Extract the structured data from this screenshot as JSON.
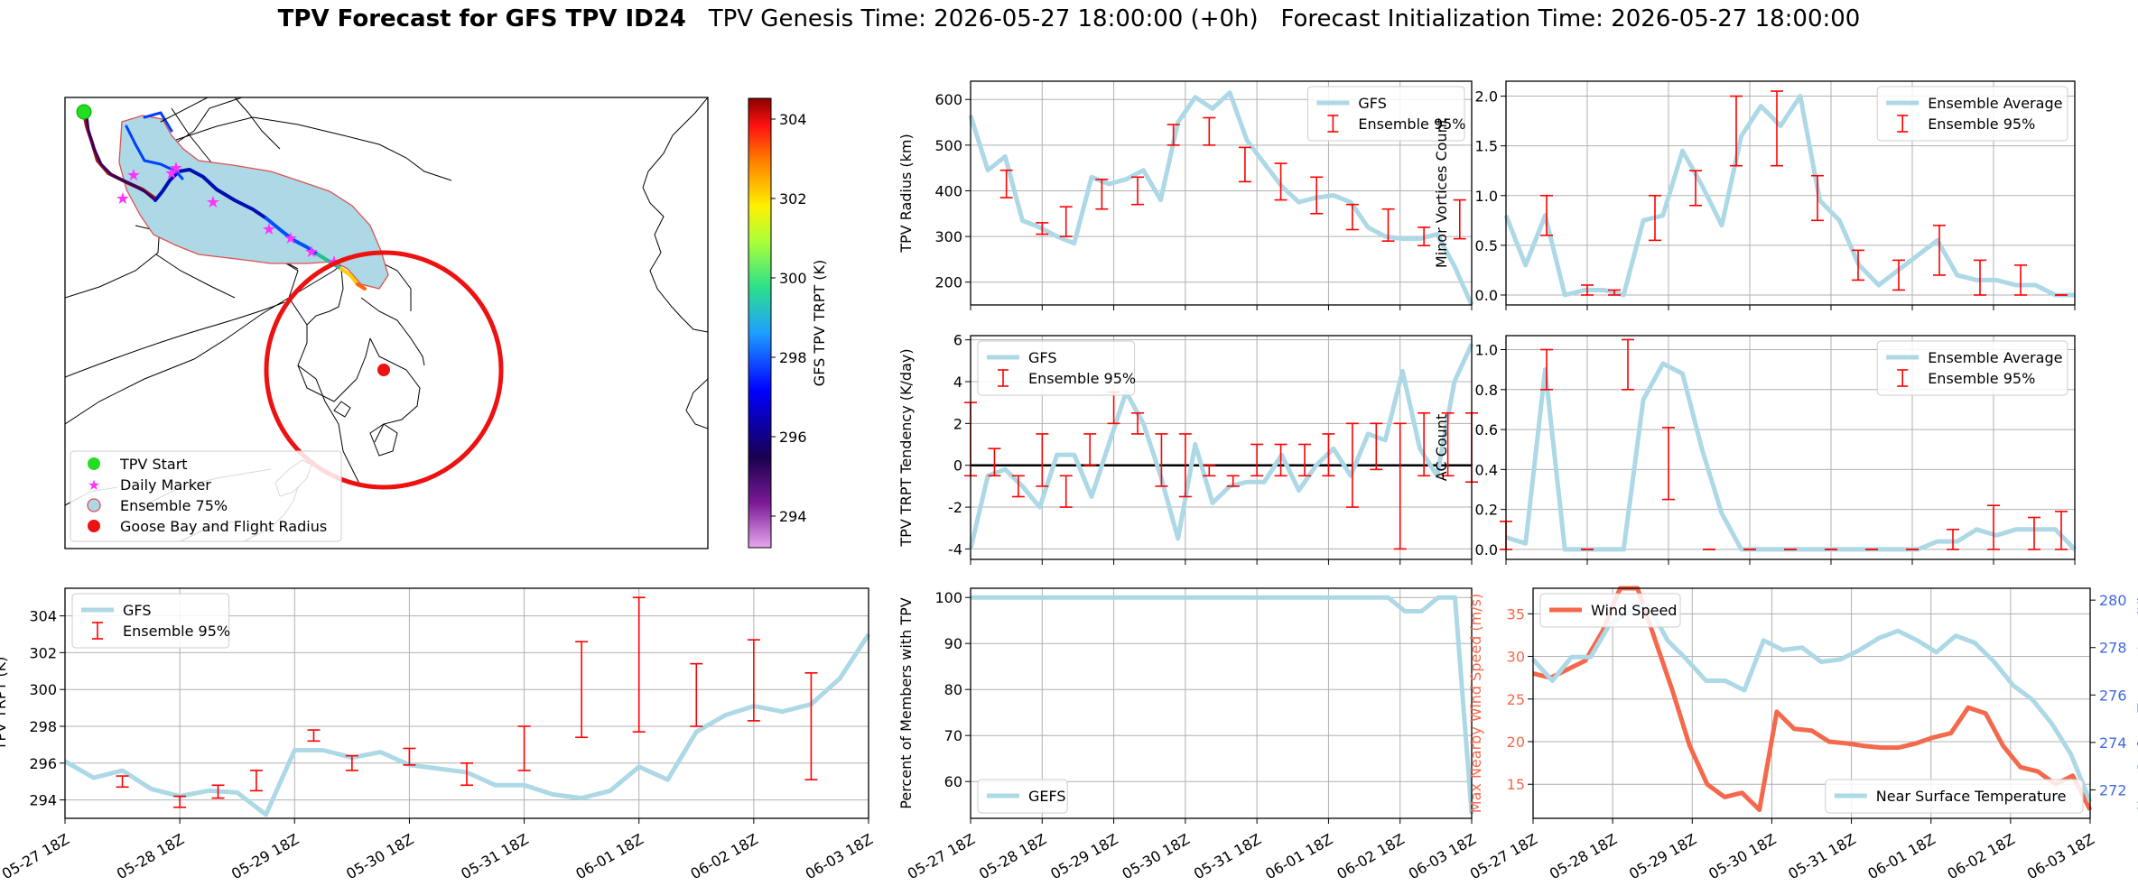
{
  "figure": {
    "title_bold": "TPV Forecast for GFS TPV ID24",
    "title_genesis": "TPV Genesis Time: 2026-05-27 18:00:00 (+0h)",
    "title_init": "Forecast Initialization Time: 2026-05-27 18:00:00"
  },
  "map_panel": {
    "colorbar_label": "GFS TPV TRPT (K)",
    "colorbar_ticks": [
      "294",
      "296",
      "298",
      "300",
      "302",
      "304"
    ],
    "legend": [
      "TPV Start",
      "Daily Marker",
      "Ensemble 75%",
      "Goose Bay and Flight Radius"
    ]
  },
  "chart_data": [
    {
      "id": "radius",
      "type": "line",
      "ylabel": "TPV Radius (km)",
      "ylim": [
        150,
        640
      ],
      "yticks": [
        200,
        300,
        400,
        500,
        600
      ],
      "xlim": [
        0,
        42
      ],
      "series": [
        {
          "name": "GFS",
          "color": "#add8e6",
          "values": [
            565,
            445,
            475,
            335,
            320,
            300,
            285,
            430,
            415,
            425,
            445,
            380,
            550,
            605,
            580,
            615,
            510,
            460,
            410,
            375,
            385,
            390,
            375,
            320,
            300,
            295,
            295,
            305,
            235,
            150
          ]
        }
      ],
      "errorbars": {
        "name": "Ensemble 95%",
        "color": "#ff0000",
        "x": [
          3,
          6,
          8,
          11,
          14,
          17,
          20,
          23,
          26,
          29,
          32,
          35,
          38,
          41
        ],
        "lo": [
          385,
          305,
          300,
          360,
          370,
          500,
          500,
          420,
          380,
          350,
          315,
          290,
          280,
          295
        ],
        "hi": [
          445,
          330,
          365,
          425,
          430,
          545,
          560,
          495,
          460,
          430,
          370,
          360,
          320,
          380
        ]
      },
      "legend_pos": "top-right",
      "show_xticklabels": false
    },
    {
      "id": "minor",
      "type": "line",
      "ylabel": "Minor Vortices Count",
      "ylim": [
        -0.1,
        2.15
      ],
      "yticks": [
        0.0,
        0.5,
        1.0,
        1.5,
        2.0
      ],
      "xlim": [
        0,
        42
      ],
      "series": [
        {
          "name": "Ensemble Average",
          "color": "#add8e6",
          "values": [
            0.8,
            0.3,
            0.8,
            0.0,
            0.05,
            0.05,
            0.0,
            0.75,
            0.8,
            1.45,
            1.1,
            0.7,
            1.6,
            1.9,
            1.7,
            2.0,
            0.95,
            0.75,
            0.3,
            0.1,
            0.25,
            0.4,
            0.55,
            0.2,
            0.15,
            0.15,
            0.1,
            0.1,
            0.0,
            0.0
          ]
        }
      ],
      "errorbars": {
        "name": "Ensemble 95%",
        "color": "#ff0000",
        "x": [
          3,
          6,
          8,
          11,
          14,
          17,
          20,
          23,
          26,
          29,
          32,
          35,
          38,
          41
        ],
        "lo": [
          0.6,
          0.0,
          0.0,
          0.55,
          0.9,
          1.3,
          1.3,
          0.75,
          0.15,
          0.05,
          0.2,
          0.0,
          0.0,
          0.0
        ],
        "hi": [
          1.0,
          0.1,
          0.05,
          1.0,
          1.25,
          2.0,
          2.05,
          1.2,
          0.45,
          0.35,
          0.7,
          0.35,
          0.3,
          0.0
        ]
      },
      "legend_pos": "top-right",
      "show_xticklabels": false
    },
    {
      "id": "tendency",
      "type": "line",
      "ylabel": "TPV TRPT Tendency (K/day)",
      "ylim": [
        -4.5,
        6.2
      ],
      "yticks": [
        -4,
        -2,
        0,
        2,
        4,
        6
      ],
      "xlim": [
        0,
        42
      ],
      "zero_line": true,
      "series": [
        {
          "name": "GFS",
          "color": "#add8e6",
          "values": [
            -4.0,
            -0.5,
            -0.2,
            -1.0,
            -2.0,
            0.5,
            0.5,
            -1.5,
            1.0,
            3.5,
            2.0,
            -0.5,
            -3.5,
            1.0,
            -1.8,
            -1.0,
            -0.8,
            -0.8,
            0.5,
            -1.2,
            0.0,
            0.8,
            -0.5,
            1.5,
            1.2,
            4.5,
            0.8,
            -0.5,
            4.0,
            5.8
          ]
        }
      ],
      "errorbars": {
        "name": "Ensemble 95%",
        "color": "#ff0000",
        "x": [
          0,
          2,
          4,
          6,
          8,
          10,
          12,
          14,
          16,
          18,
          20,
          22,
          24,
          26,
          28,
          30,
          32,
          34,
          36,
          38,
          40,
          42
        ],
        "lo": [
          -0.5,
          -0.5,
          -1.5,
          -1.0,
          -2.0,
          0.0,
          2.0,
          1.5,
          -1.0,
          -1.5,
          -0.5,
          -1.0,
          -0.5,
          -0.5,
          -0.5,
          -0.5,
          -2.0,
          -0.2,
          -4.0,
          -0.5,
          -0.5,
          -0.8
        ],
        "hi": [
          3.0,
          0.8,
          -0.5,
          1.5,
          -0.5,
          1.5,
          3.5,
          2.5,
          1.5,
          1.5,
          0.0,
          -0.5,
          1.0,
          1.0,
          1.0,
          1.5,
          2.0,
          2.0,
          2.0,
          2.5,
          2.5,
          2.5
        ]
      },
      "legend_pos": "top-left",
      "show_xticklabels": false
    },
    {
      "id": "ac",
      "type": "line",
      "ylabel": "AC Count",
      "ylim": [
        -0.05,
        1.07
      ],
      "yticks": [
        0.0,
        0.2,
        0.4,
        0.6,
        0.8,
        1.0
      ],
      "xlim": [
        0,
        42
      ],
      "series": [
        {
          "name": "Ensemble Average",
          "color": "#add8e6",
          "values": [
            0.06,
            0.03,
            0.9,
            0.0,
            0.0,
            0.0,
            0.0,
            0.75,
            0.93,
            0.88,
            0.5,
            0.18,
            0.0,
            0.0,
            0.0,
            0.0,
            0.0,
            0.0,
            0.0,
            0.0,
            0.0,
            0.0,
            0.04,
            0.04,
            0.1,
            0.07,
            0.1,
            0.1,
            0.1,
            0.0
          ]
        }
      ],
      "errorbars": {
        "name": "Ensemble 95%",
        "color": "#ff0000",
        "x": [
          0,
          3,
          6,
          9,
          12,
          15,
          18,
          21,
          24,
          27,
          30,
          33,
          36,
          39,
          41
        ],
        "lo": [
          0.0,
          0.8,
          0.0,
          0.8,
          0.25,
          0.0,
          0.0,
          0.0,
          0.0,
          0.0,
          0.0,
          0.0,
          0.0,
          0.0,
          0.0
        ],
        "hi": [
          0.14,
          1.0,
          0.0,
          1.05,
          0.61,
          0.0,
          0.0,
          0.0,
          0.0,
          0.0,
          0.0,
          0.1,
          0.22,
          0.16,
          0.19
        ]
      },
      "legend_pos": "top-right",
      "show_xticklabels": false
    },
    {
      "id": "trpt",
      "type": "line",
      "ylabel": "TPV TRPT (K)",
      "ylim": [
        293.0,
        305.5
      ],
      "yticks": [
        294,
        296,
        298,
        300,
        302,
        304
      ],
      "xlim": [
        0,
        42
      ],
      "xticklabels": [
        "05-27 18Z",
        "05-28 18Z",
        "05-29 18Z",
        "05-30 18Z",
        "05-31 18Z",
        "06-01 18Z",
        "06-02 18Z",
        "06-03 18Z"
      ],
      "series": [
        {
          "name": "GFS",
          "color": "#add8e6",
          "values": [
            296.1,
            295.2,
            295.6,
            294.6,
            294.2,
            294.5,
            294.4,
            293.2,
            296.7,
            296.7,
            296.3,
            296.6,
            295.9,
            295.7,
            295.5,
            294.8,
            294.8,
            294.3,
            294.1,
            294.5,
            295.8,
            295.1,
            297.7,
            298.6,
            299.1,
            298.8,
            299.2,
            300.6,
            303.0
          ]
        }
      ],
      "errorbars": {
        "name": "Ensemble 95%",
        "color": "#ff0000",
        "x": [
          3,
          6,
          8,
          10,
          13,
          15,
          18,
          21,
          24,
          27,
          30,
          33,
          36,
          39
        ],
        "lo": [
          294.7,
          293.6,
          294.1,
          294.5,
          297.2,
          295.6,
          295.9,
          294.8,
          295.6,
          297.4,
          297.7,
          298.0,
          298.3,
          295.1
        ],
        "hi": [
          295.3,
          294.2,
          294.8,
          295.6,
          297.8,
          296.4,
          296.8,
          296.0,
          298.0,
          302.6,
          305.0,
          301.4,
          302.7,
          300.9
        ]
      },
      "legend_pos": "top-left",
      "show_xticklabels": true
    },
    {
      "id": "percent",
      "type": "line",
      "ylabel": "Percent of Members with TPV",
      "ylim": [
        52,
        102
      ],
      "yticks": [
        60,
        70,
        80,
        90,
        100
      ],
      "xlim": [
        0,
        42
      ],
      "xticklabels": [
        "05-27 18Z",
        "05-28 18Z",
        "05-29 18Z",
        "05-30 18Z",
        "05-31 18Z",
        "06-01 18Z",
        "06-02 18Z",
        "06-03 18Z"
      ],
      "series": [
        {
          "name": "GEFS",
          "color": "#add8e6",
          "values": [
            100,
            100,
            100,
            100,
            100,
            100,
            100,
            100,
            100,
            100,
            100,
            100,
            100,
            100,
            100,
            100,
            100,
            100,
            100,
            100,
            100,
            100,
            100,
            100,
            100,
            100,
            97,
            97,
            100,
            100,
            53
          ]
        }
      ],
      "legend_pos": "bottom-left",
      "show_xticklabels": true
    },
    {
      "id": "wind_temp",
      "type": "line",
      "ylabel": "Max Nearby Wind Speed (m/s)",
      "y2label": "Near Surface Temperature (K)",
      "ylim": [
        11,
        38
      ],
      "yticks": [
        15,
        20,
        25,
        30,
        35
      ],
      "y2lim": [
        270.8,
        280.5
      ],
      "y2ticks": [
        272,
        274,
        276,
        278,
        280
      ],
      "xlim": [
        0,
        42
      ],
      "xticklabels": [
        "05-27 18Z",
        "05-28 18Z",
        "05-29 18Z",
        "05-30 18Z",
        "05-31 18Z",
        "06-01 18Z",
        "06-02 18Z",
        "06-03 18Z"
      ],
      "series": [
        {
          "name": "Wind Speed",
          "color": "#f4694c",
          "axis": "left",
          "values": [
            28,
            27.5,
            28.5,
            29.5,
            33,
            38,
            38,
            32,
            26,
            19.5,
            15,
            13.5,
            14,
            12,
            23.5,
            21.5,
            21.3,
            20,
            19.8,
            19.5,
            19.3,
            19.3,
            19.8,
            20.5,
            21,
            24,
            23.3,
            19.5,
            17,
            16.5,
            15,
            16,
            12
          ]
        },
        {
          "name": "Near Surface Temperature",
          "color": "#add8e6",
          "axis": "right",
          "values": [
            277.5,
            276.6,
            277.6,
            277.6,
            279.0,
            279.5,
            279.8,
            278.3,
            277.5,
            276.6,
            276.6,
            276.2,
            278.3,
            277.9,
            278.0,
            277.4,
            277.5,
            277.9,
            278.4,
            278.7,
            278.3,
            277.8,
            278.5,
            278.2,
            277.4,
            276.4,
            275.8,
            274.8,
            273.5,
            271.5
          ]
        }
      ],
      "legend_pos": "top-left / bottom-right",
      "show_xticklabels": true
    }
  ],
  "colors": {
    "line": "#add8e6",
    "errorbar": "#ff0000",
    "wind": "#f4694c",
    "temp_axis": "#4169e1",
    "grid": "#b0b0b0"
  }
}
